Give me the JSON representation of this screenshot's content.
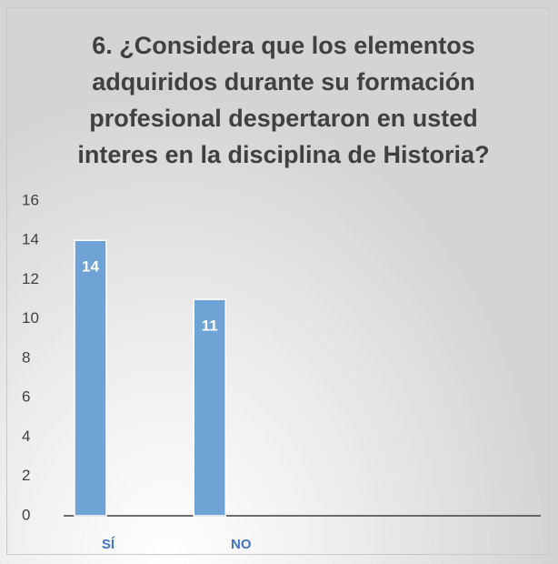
{
  "chart_data": {
    "type": "bar",
    "title": "6. ¿Considera que los elementos adquiridos durante su formación profesional despertaron en usted interes en la disciplina de Historia?",
    "categories": [
      "SÍ",
      "NO"
    ],
    "values": [
      14,
      11
    ],
    "color": "#6fa3d6",
    "ylim": [
      0,
      16
    ],
    "yticks": [
      0,
      2,
      4,
      6,
      8,
      10,
      12,
      14,
      16
    ],
    "grid": false
  }
}
